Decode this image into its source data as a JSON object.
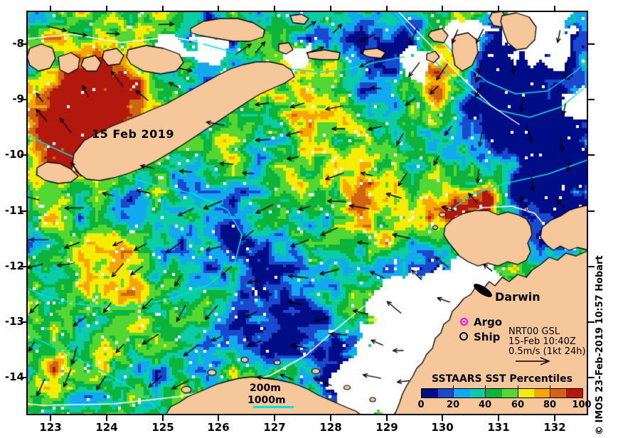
{
  "axes": {
    "lon_labels": [
      "123",
      "124",
      "125",
      "126",
      "127",
      "128",
      "129",
      "130",
      "131",
      "132"
    ],
    "lat_labels": [
      "-8",
      "-9",
      "-10",
      "-11",
      "-12",
      "-13",
      "-14"
    ]
  },
  "map": {
    "date_label": "15 Feb 2019",
    "city": {
      "label": "Darwin"
    },
    "obs_legend": {
      "argo_label": "Argo",
      "ship_label": "Ship"
    },
    "info_box": {
      "product": "NRT00 GSL",
      "datetime": "15-Feb 10:40Z",
      "scale": "0.5m/s (1kt 24h)"
    },
    "contour_legend": {
      "depth200": "200m",
      "depth1000": "1000m"
    }
  },
  "colorbar": {
    "title": "SSTAARS SST Percentiles",
    "tick_labels": [
      "0",
      "20",
      "40",
      "60",
      "80",
      "100"
    ],
    "colors": [
      "#000d86",
      "#1a49ce",
      "#12a9f0",
      "#0bcca4",
      "#0db43c",
      "#55d733",
      "#f5ec00",
      "#f5a700",
      "#cf6412",
      "#b2180c"
    ]
  },
  "watermark": "© IMOS 23-Feb-2019 10:57 Hobart",
  "palette": {
    "land": "#f5c79b",
    "no_data": "#ffffff",
    "contour_200m": "#ffffff",
    "contour_1000m": "#00e0e0",
    "arrows": "#000000",
    "argo_marker": "#ff00ff",
    "ship_marker": "#000000",
    "frame": "#000000"
  }
}
